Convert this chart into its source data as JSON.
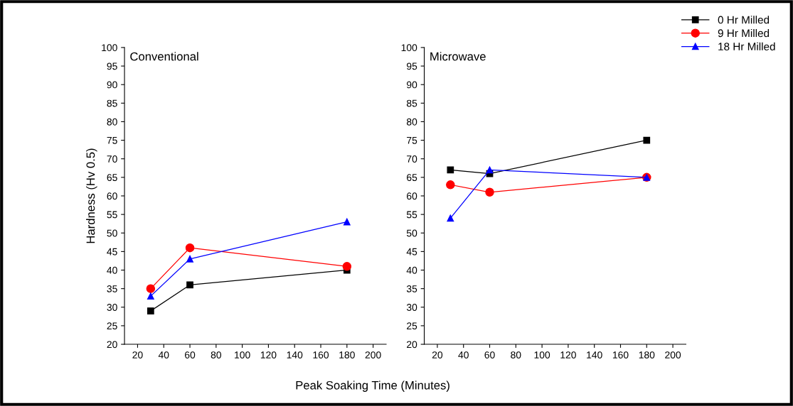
{
  "chart_data": [
    {
      "type": "line",
      "title": "Conventional",
      "ylabel": "Hardness (Hv 0.5)",
      "xlabel": "Peak Soaking Time (Minutes)",
      "x": [
        30,
        60,
        180
      ],
      "xlim": [
        10,
        210
      ],
      "xticks": [
        20,
        40,
        60,
        80,
        100,
        120,
        140,
        160,
        180,
        200
      ],
      "ylim": [
        20,
        100
      ],
      "yticks": [
        20,
        25,
        30,
        35,
        40,
        45,
        50,
        55,
        60,
        65,
        70,
        75,
        80,
        85,
        90,
        95,
        100
      ],
      "grid": false,
      "series": [
        {
          "color": "#000000",
          "marker": "square",
          "values": [
            29,
            36,
            40
          ]
        },
        {
          "color": "#ff0000",
          "marker": "circle",
          "values": [
            35,
            46,
            41
          ]
        },
        {
          "color": "#0000ff",
          "marker": "triangle",
          "values": [
            33,
            43,
            53
          ]
        }
      ]
    },
    {
      "type": "line",
      "title": "Microwave",
      "x": [
        30,
        60,
        180
      ],
      "xlim": [
        10,
        210
      ],
      "xticks": [
        20,
        40,
        60,
        80,
        100,
        120,
        140,
        160,
        180,
        200
      ],
      "ylim": [
        20,
        100
      ],
      "yticks": [
        20,
        25,
        30,
        35,
        40,
        45,
        50,
        55,
        60,
        65,
        70,
        75,
        80,
        85,
        90,
        95,
        100
      ],
      "grid": false,
      "legend": "top right",
      "series": [
        {
          "name": "0 Hr Milled",
          "color": "#000000",
          "marker": "square",
          "values": [
            67,
            66,
            75
          ]
        },
        {
          "name": "9 Hr Milled",
          "color": "#ff0000",
          "marker": "circle",
          "values": [
            63,
            61,
            65
          ]
        },
        {
          "name": "18 Hr Milled",
          "color": "#0000ff",
          "marker": "triangle",
          "values": [
            54,
            67,
            65
          ]
        }
      ]
    }
  ]
}
